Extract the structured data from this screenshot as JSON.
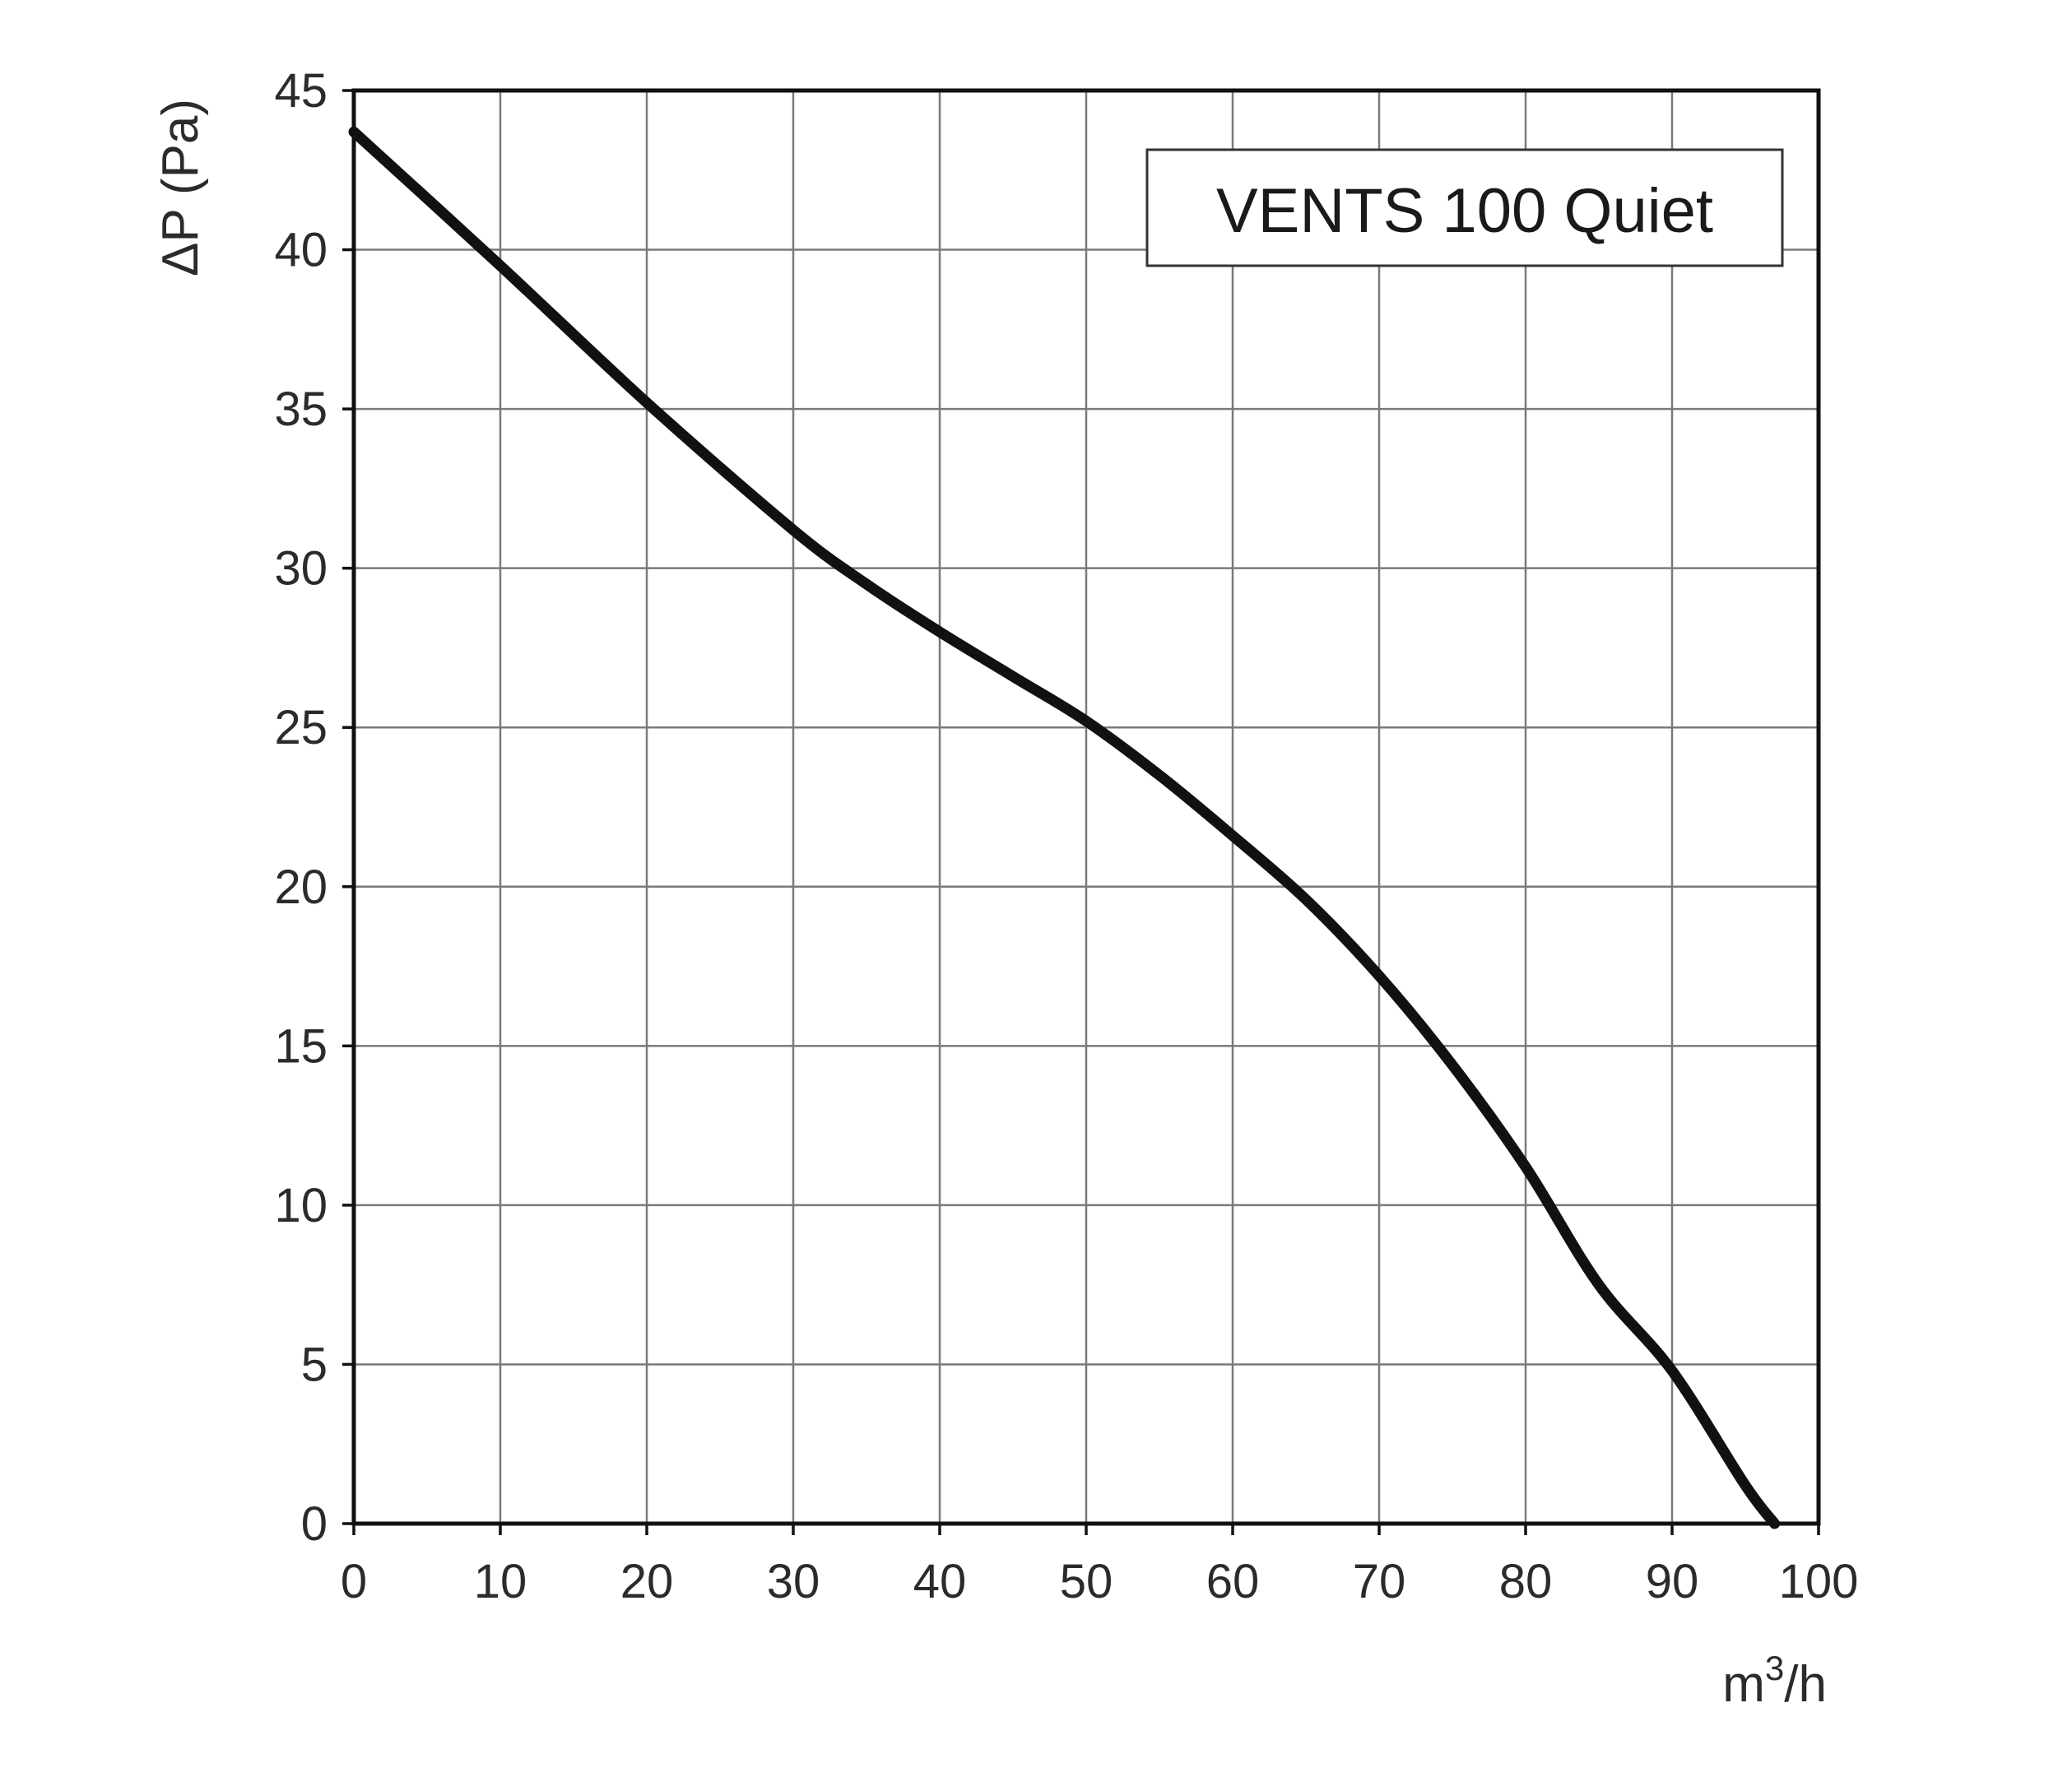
{
  "chart_data": {
    "type": "line",
    "title": "",
    "legend": {
      "label": "VENTS 100 Quiet",
      "placement": "top-right"
    },
    "xlabel": "m3/h",
    "xlabel_parts": {
      "base": "m",
      "sup": "3",
      "tail": "/h"
    },
    "ylabel": "ΔP (Pa)",
    "xlim": [
      0,
      100
    ],
    "ylim": [
      0,
      45
    ],
    "xticks": [
      "0",
      "10",
      "20",
      "30",
      "40",
      "50",
      "60",
      "70",
      "80",
      "90",
      "100"
    ],
    "yticks": [
      "0",
      "5",
      "10",
      "15",
      "20",
      "25",
      "30",
      "35",
      "40",
      "45"
    ],
    "grid": true,
    "series": [
      {
        "name": "VENTS 100 Quiet",
        "color": "#111111",
        "x": [
          0,
          10,
          20,
          30,
          35,
          40,
          45,
          50,
          55,
          60,
          65,
          70,
          75,
          80,
          85,
          90,
          95,
          97
        ],
        "y": [
          43.7,
          39.5,
          35.2,
          31.2,
          29.5,
          28.0,
          26.6,
          25.2,
          23.5,
          21.6,
          19.6,
          17.2,
          14.4,
          11.2,
          7.5,
          4.8,
          1.2,
          0
        ]
      }
    ]
  }
}
